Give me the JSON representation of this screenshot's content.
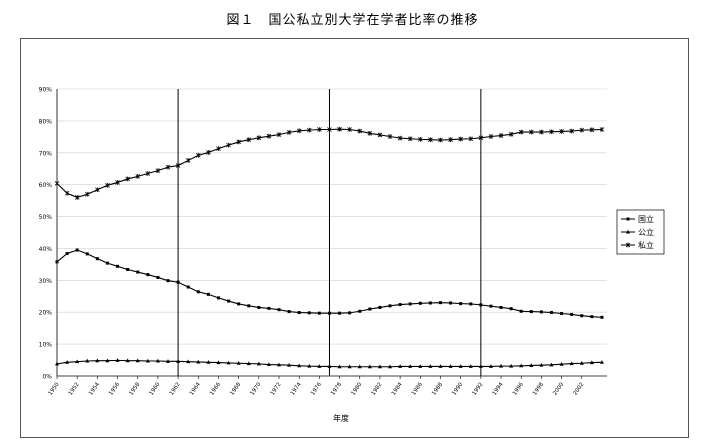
{
  "chart_data": {
    "type": "line",
    "title": "図１　国公私立別大学在学者比率の推移",
    "xlabel": "年度",
    "ylabel": "",
    "ylim": [
      0,
      90
    ],
    "yticks": [
      "0%",
      "10%",
      "20%",
      "30%",
      "40%",
      "50%",
      "60%",
      "70%",
      "80%",
      "90%"
    ],
    "xtick_labels": [
      "1950",
      "1952",
      "1954",
      "1956",
      "1958",
      "1960",
      "1962",
      "1964",
      "1966",
      "1968",
      "1970",
      "1972",
      "1974",
      "1976",
      "1978",
      "1980",
      "1982",
      "1984",
      "1986",
      "1988",
      "1990",
      "1992",
      "1994",
      "1996",
      "1998",
      "2000",
      "2002"
    ],
    "vertical_lines": [
      1962,
      1977,
      1992
    ],
    "legend_position": "right",
    "grid": true,
    "x": [
      1950,
      1951,
      1952,
      1953,
      1954,
      1955,
      1956,
      1957,
      1958,
      1959,
      1960,
      1961,
      1962,
      1963,
      1964,
      1965,
      1966,
      1967,
      1968,
      1969,
      1970,
      1971,
      1972,
      1973,
      1974,
      1975,
      1976,
      1977,
      1978,
      1979,
      1980,
      1981,
      1982,
      1983,
      1984,
      1985,
      1986,
      1987,
      1988,
      1989,
      1990,
      1991,
      1992,
      1993,
      1994,
      1995,
      1996,
      1997,
      1998,
      1999,
      2000,
      2001,
      2002,
      2003,
      2004
    ],
    "series": [
      {
        "name": "国立",
        "marker": "square",
        "values": [
          35.8,
          38.4,
          39.5,
          38.3,
          36.8,
          35.4,
          34.4,
          33.4,
          32.6,
          31.8,
          30.9,
          29.9,
          29.4,
          27.9,
          26.4,
          25.6,
          24.5,
          23.5,
          22.6,
          22.0,
          21.5,
          21.2,
          20.8,
          20.2,
          19.9,
          19.8,
          19.7,
          19.7,
          19.7,
          19.8,
          20.3,
          21.0,
          21.5,
          22.0,
          22.4,
          22.6,
          22.8,
          22.9,
          23.0,
          22.9,
          22.7,
          22.6,
          22.3,
          21.9,
          21.5,
          21.1,
          20.3,
          20.2,
          20.1,
          19.9,
          19.6,
          19.3,
          18.9,
          18.6,
          18.4
        ]
      },
      {
        "name": "公立",
        "marker": "triangle",
        "values": [
          3.8,
          4.3,
          4.5,
          4.7,
          4.8,
          4.8,
          4.9,
          4.8,
          4.8,
          4.7,
          4.7,
          4.6,
          4.6,
          4.5,
          4.4,
          4.3,
          4.2,
          4.1,
          4.0,
          3.9,
          3.8,
          3.6,
          3.5,
          3.4,
          3.2,
          3.1,
          3.0,
          3.0,
          2.9,
          2.9,
          2.9,
          2.9,
          2.9,
          2.9,
          3.0,
          3.0,
          3.0,
          3.0,
          3.0,
          3.0,
          3.0,
          3.0,
          3.0,
          3.0,
          3.1,
          3.1,
          3.2,
          3.3,
          3.4,
          3.5,
          3.7,
          3.9,
          4.0,
          4.2,
          4.3
        ]
      },
      {
        "name": "私立",
        "marker": "star",
        "values": [
          60.4,
          57.3,
          56.0,
          57.0,
          58.4,
          59.8,
          60.7,
          61.8,
          62.6,
          63.5,
          64.4,
          65.5,
          66.0,
          67.6,
          69.2,
          70.1,
          71.3,
          72.4,
          73.4,
          74.1,
          74.7,
          75.2,
          75.7,
          76.4,
          76.9,
          77.1,
          77.3,
          77.3,
          77.4,
          77.3,
          76.8,
          76.1,
          75.6,
          75.1,
          74.6,
          74.4,
          74.2,
          74.1,
          74.0,
          74.1,
          74.3,
          74.4,
          74.7,
          75.1,
          75.4,
          75.8,
          76.5,
          76.5,
          76.5,
          76.6,
          76.7,
          76.8,
          77.1,
          77.2,
          77.3
        ]
      }
    ]
  }
}
